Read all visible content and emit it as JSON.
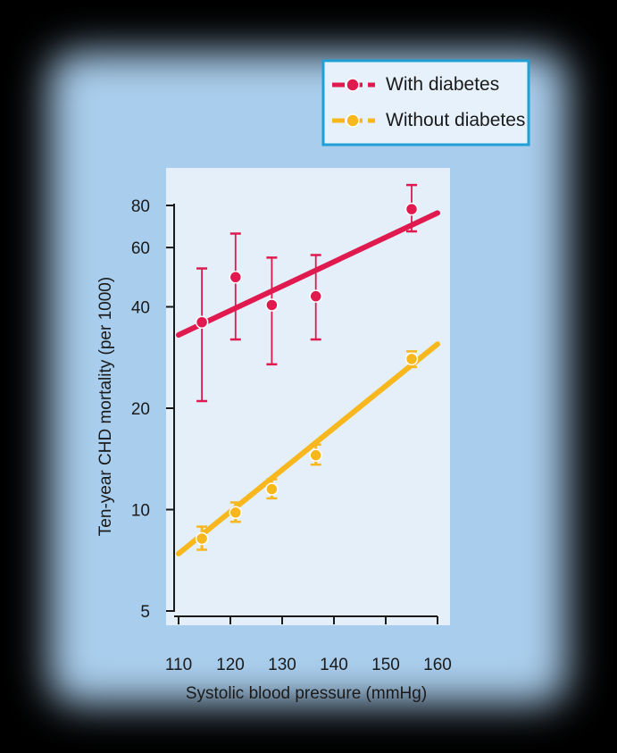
{
  "colors": {
    "page_bg": "#000000",
    "panel_bg": "#a9cdec",
    "plot_bg": "#e4effa",
    "legend_border": "#1f9fd6",
    "legend_bg": "#e6f1fb",
    "axis": "#1a1a1a"
  },
  "legend": {
    "position": "top-right",
    "items": [
      {
        "label": "With diabetes",
        "color": "#e0194f",
        "icon": "line-with-dot-icon"
      },
      {
        "label": "Without diabetes",
        "color": "#f7b71d",
        "icon": "line-with-dot-icon"
      }
    ]
  },
  "chart_data": {
    "type": "scatter",
    "xlabel": "Systolic blood pressure (mmHg)",
    "ylabel": "Ten-year CHD mortality (per 1000)",
    "xlim": [
      110,
      160
    ],
    "ylim": [
      5,
      90
    ],
    "yscale": "log",
    "xticks": [
      110,
      120,
      130,
      140,
      150,
      160
    ],
    "yticks": [
      5,
      10,
      20,
      40,
      60,
      80
    ],
    "grid": false,
    "series": [
      {
        "name": "With diabetes",
        "color": "#e0194f",
        "points": [
          {
            "x": 114.5,
            "y": 36,
            "lo": 21,
            "hi": 52
          },
          {
            "x": 121,
            "y": 49,
            "lo": 32,
            "hi": 66
          },
          {
            "x": 128,
            "y": 40.5,
            "lo": 27,
            "hi": 56
          },
          {
            "x": 136.5,
            "y": 43,
            "lo": 32,
            "hi": 57
          },
          {
            "x": 155,
            "y": 78,
            "lo": 67,
            "hi": 92
          }
        ],
        "trend": {
          "x": [
            110,
            160
          ],
          "y": [
            33,
            76
          ]
        }
      },
      {
        "name": "Without diabetes",
        "color": "#f7b71d",
        "points": [
          {
            "x": 114.5,
            "y": 8.2,
            "lo": 7.6,
            "hi": 8.9
          },
          {
            "x": 121,
            "y": 9.8,
            "lo": 9.2,
            "hi": 10.5
          },
          {
            "x": 128,
            "y": 11.5,
            "lo": 10.8,
            "hi": 12.3
          },
          {
            "x": 136.5,
            "y": 14.5,
            "lo": 13.6,
            "hi": 15.6
          },
          {
            "x": 155,
            "y": 28,
            "lo": 26.5,
            "hi": 29.5
          }
        ],
        "trend": {
          "x": [
            110,
            160
          ],
          "y": [
            7.4,
            31
          ]
        }
      }
    ]
  }
}
